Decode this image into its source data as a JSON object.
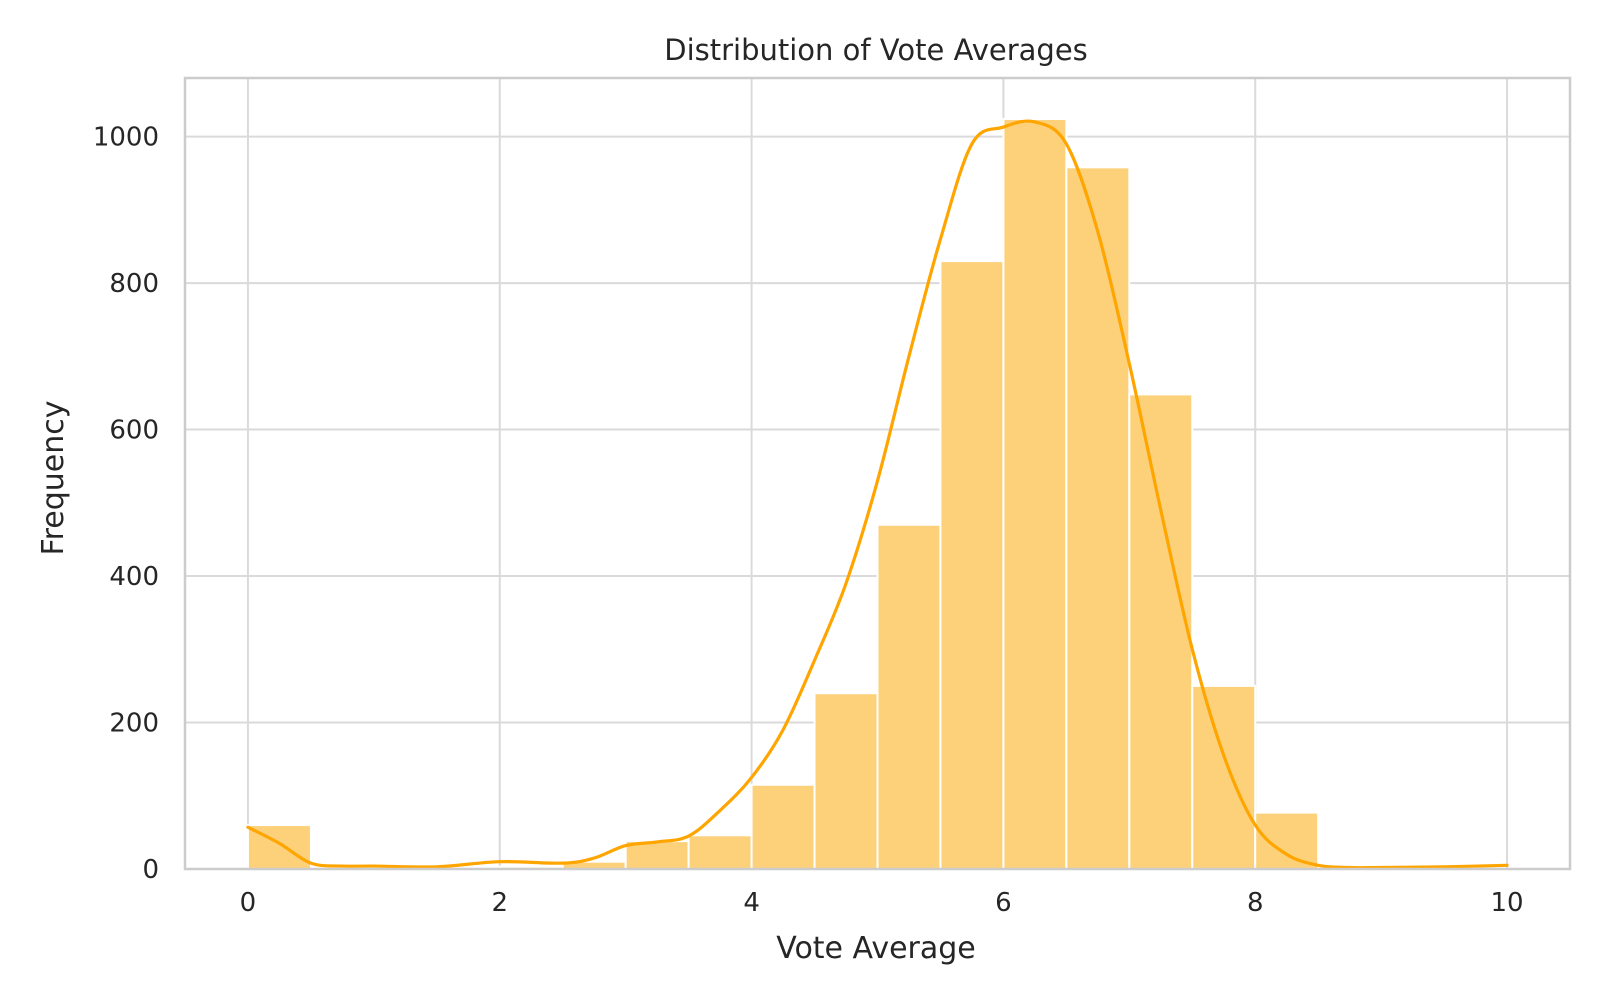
{
  "chart_data": {
    "type": "bar",
    "title": "Distribution of Vote Averages",
    "xlabel": "Vote Average",
    "ylabel": "Frequency",
    "xlim": [
      -0.5,
      10.5
    ],
    "ylim": [
      0,
      1080
    ],
    "xticks": [
      0,
      2,
      4,
      6,
      8,
      10
    ],
    "yticks": [
      0,
      200,
      400,
      600,
      800,
      1000
    ],
    "grid": true,
    "bin_width": 0.5,
    "bins": [
      {
        "x0": 0.0,
        "x1": 0.5,
        "count": 60
      },
      {
        "x0": 0.5,
        "x1": 1.0,
        "count": 0
      },
      {
        "x0": 1.0,
        "x1": 1.5,
        "count": 0
      },
      {
        "x0": 1.5,
        "x1": 2.0,
        "count": 0
      },
      {
        "x0": 2.0,
        "x1": 2.5,
        "count": 3
      },
      {
        "x0": 2.5,
        "x1": 3.0,
        "count": 10
      },
      {
        "x0": 3.0,
        "x1": 3.5,
        "count": 38
      },
      {
        "x0": 3.5,
        "x1": 4.0,
        "count": 46
      },
      {
        "x0": 4.0,
        "x1": 4.5,
        "count": 115
      },
      {
        "x0": 4.5,
        "x1": 5.0,
        "count": 240
      },
      {
        "x0": 5.0,
        "x1": 5.5,
        "count": 470
      },
      {
        "x0": 5.5,
        "x1": 6.0,
        "count": 830
      },
      {
        "x0": 6.0,
        "x1": 6.5,
        "count": 1024
      },
      {
        "x0": 6.5,
        "x1": 7.0,
        "count": 958
      },
      {
        "x0": 7.0,
        "x1": 7.5,
        "count": 648
      },
      {
        "x0": 7.5,
        "x1": 8.0,
        "count": 250
      },
      {
        "x0": 8.0,
        "x1": 8.5,
        "count": 77
      },
      {
        "x0": 8.5,
        "x1": 9.0,
        "count": 0
      },
      {
        "x0": 9.0,
        "x1": 9.5,
        "count": 0
      },
      {
        "x0": 9.5,
        "x1": 10.0,
        "count": 0
      }
    ],
    "kde": {
      "x": [
        0.0,
        0.25,
        0.5,
        0.75,
        1.0,
        1.5,
        2.0,
        2.5,
        2.75,
        3.0,
        3.25,
        3.5,
        3.75,
        4.0,
        4.25,
        4.5,
        4.75,
        5.0,
        5.25,
        5.5,
        5.75,
        6.0,
        6.25,
        6.5,
        6.75,
        7.0,
        7.25,
        7.5,
        7.75,
        8.0,
        8.25,
        8.5,
        8.75,
        9.0,
        9.5,
        10.0
      ],
      "y": [
        57,
        35,
        8,
        4,
        4,
        3,
        10,
        8,
        15,
        32,
        37,
        45,
        80,
        125,
        190,
        285,
        390,
        530,
        700,
        860,
        990,
        1013,
        1020,
        990,
        870,
        690,
        490,
        300,
        155,
        60,
        20,
        5,
        2,
        2,
        3,
        5
      ]
    },
    "colors": {
      "bar": "#fdd07a",
      "bar_edge": "#ffffff",
      "kde": "#ffa500",
      "grid": "#dadada",
      "spine": "#cccccc",
      "text": "#262626"
    }
  }
}
